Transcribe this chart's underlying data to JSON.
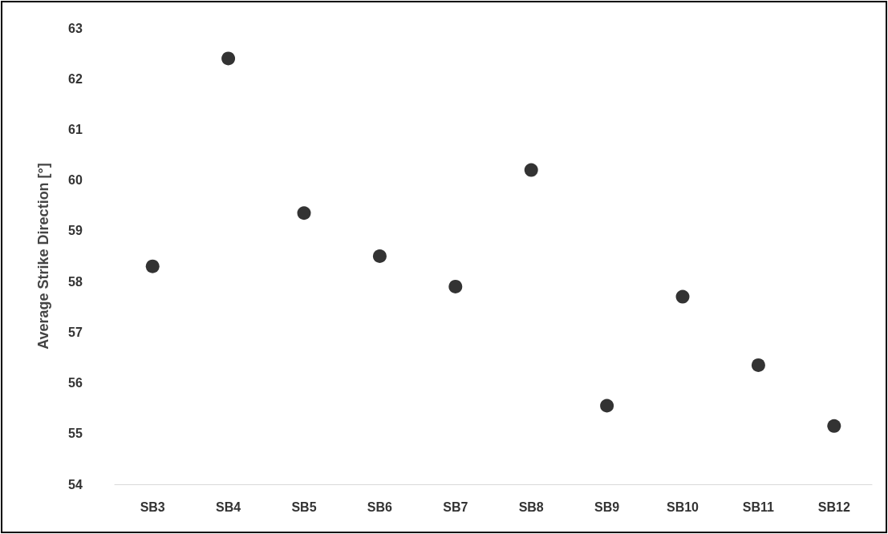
{
  "chart_data": {
    "type": "scatter",
    "ylabel": "Average Strike Direction [°]",
    "categories": [
      "SB3",
      "SB4",
      "SB5",
      "SB6",
      "SB7",
      "SB8",
      "SB9",
      "SB10",
      "SB11",
      "SB12"
    ],
    "values": [
      58.3,
      62.4,
      59.35,
      58.5,
      57.9,
      60.2,
      55.55,
      57.7,
      56.35,
      55.15
    ],
    "color": "#000000",
    "marker": "circle",
    "ylim": [
      54,
      63
    ],
    "yticks": [
      54,
      55,
      56,
      57,
      58,
      59,
      60,
      61,
      62,
      63
    ],
    "grid": false
  }
}
